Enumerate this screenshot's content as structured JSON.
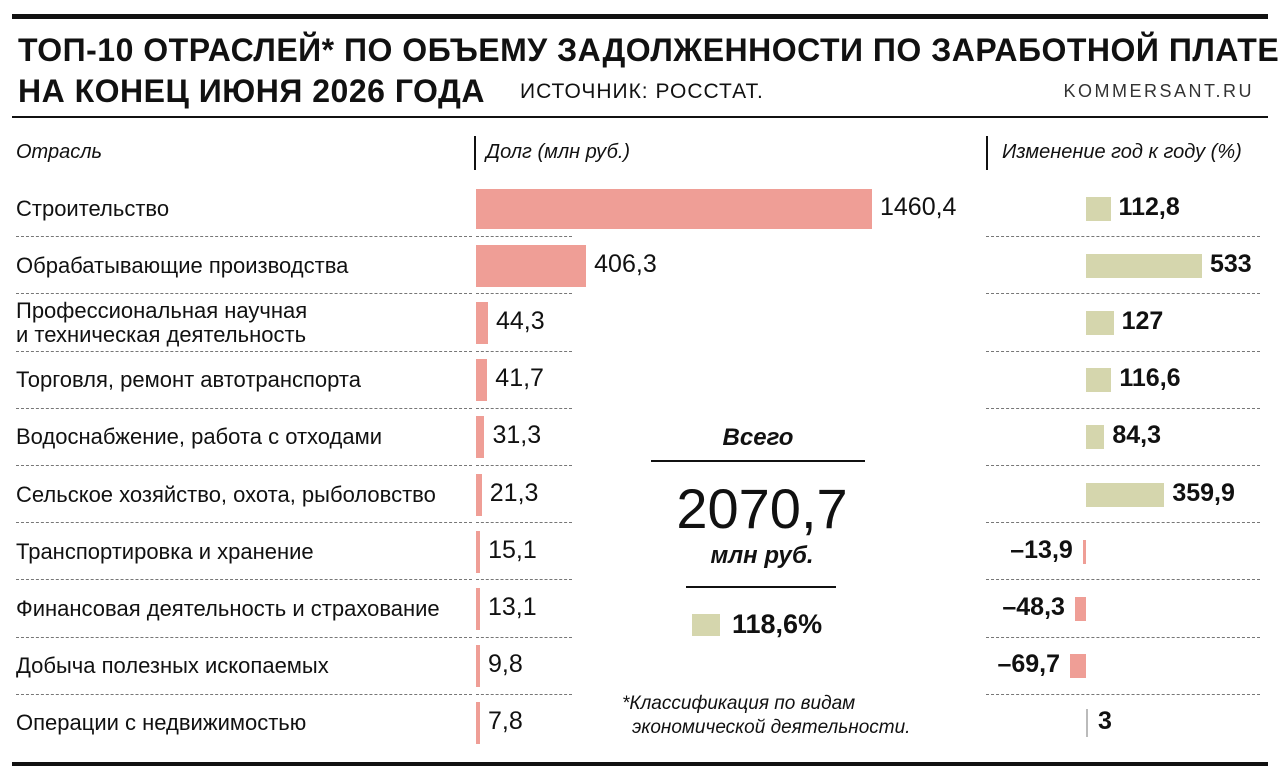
{
  "title": {
    "line1": "ТОП-10 ОТРАСЛЕЙ* ПО ОБЪЕМУ ЗАДОЛЖЕННОСТИ ПО ЗАРАБОТНОЙ ПЛАТЕ",
    "line2": "НА КОНЕЦ ИЮНЯ 2026 ГОДА",
    "source": "ИСТОЧНИК: РОССТАТ.",
    "site": "KOMMERSANT.RU"
  },
  "columns": {
    "industry": "Отрасль",
    "debt": "Долг (млн руб.)",
    "change": "Изменение год к году (%)"
  },
  "total": {
    "label": "Всего",
    "value": "2070,7",
    "unit": "млн руб.",
    "change": "118,6%"
  },
  "footnote": {
    "line1": "*Классификация по видам",
    "line2": "экономической деятельности."
  },
  "colors": {
    "debt_bar": "#ef9e96",
    "change_positive": "#d5d6ad",
    "change_negative": "#ef9e96"
  },
  "chart_data": {
    "type": "bar",
    "categories": [
      "Строительство",
      "Обрабатывающие производства",
      "Профессиональная научная и техническая деятельность",
      "Торговля, ремонт автотранспорта",
      "Водоснабжение, работа с отходами",
      "Сельское хозяйство, охота, рыболовство",
      "Транспортировка и хранение",
      "Финансовая деятельность и страхование",
      "Добыча полезных ископаемых",
      "Операции с недвижимостью"
    ],
    "category_lines": [
      [
        "Строительство"
      ],
      [
        "Обрабатывающие производства"
      ],
      [
        "Профессиональная научная",
        "и техническая деятельность"
      ],
      [
        "Торговля, ремонт автотранспорта"
      ],
      [
        "Водоснабжение, работа с отходами"
      ],
      [
        "Сельское хозяйство, охота, рыболовство"
      ],
      [
        "Транспортировка и хранение"
      ],
      [
        "Финансовая деятельность и страхование"
      ],
      [
        "Добыча полезных ископаемых"
      ],
      [
        "Операции с недвижимостью"
      ]
    ],
    "series": [
      {
        "name": "Долг (млн руб.)",
        "values": [
          1460.4,
          406.3,
          44.3,
          41.7,
          31.3,
          21.3,
          15.1,
          13.1,
          9.8,
          7.8
        ],
        "labels": [
          "1460,4",
          "406,3",
          "44,3",
          "41,7",
          "31,3",
          "21,3",
          "15,1",
          "13,1",
          "9,8",
          "7,8"
        ]
      },
      {
        "name": "Изменение год к году (%)",
        "values": [
          112.8,
          533,
          127,
          116.6,
          84.3,
          359.9,
          -13.9,
          -48.3,
          -69.7,
          3
        ],
        "labels": [
          "112,8",
          "533",
          "127",
          "116,6",
          "84,3",
          "359,9",
          "–13,9",
          "–48,3",
          "–69,7",
          "3"
        ]
      }
    ]
  }
}
